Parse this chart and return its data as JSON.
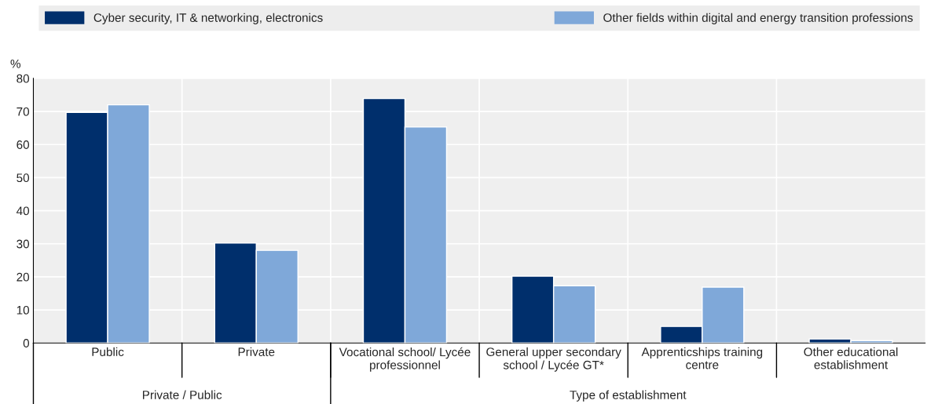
{
  "chart_data": {
    "type": "bar",
    "ylabel": "%",
    "categories": [
      "Public",
      "Private",
      "Vocational school/ Lycée\nprofessionnel",
      "General upper secondary\nschool / Lycée GT*",
      "Apprenticships training\ncentre",
      "Other educational\nestablishment"
    ],
    "series": [
      {
        "name": "Cyber security, IT & networking, electronics",
        "color": "#002f6c",
        "values": [
          69.7,
          30.2,
          73.9,
          20.2,
          5.0,
          1.2
        ]
      },
      {
        "name": "Other fields within digital and energy transition professions",
        "color": "#7fa8d9",
        "values": [
          72.0,
          28.0,
          65.3,
          17.3,
          16.9,
          0.7
        ]
      }
    ],
    "annotations": [
      "Private / Public",
      "Type of establishment"
    ],
    "ylim": [
      0,
      80
    ],
    "yticks": [
      0,
      10,
      20,
      30,
      40,
      50,
      60,
      70,
      80
    ],
    "grid": "y",
    "legend": "top"
  }
}
